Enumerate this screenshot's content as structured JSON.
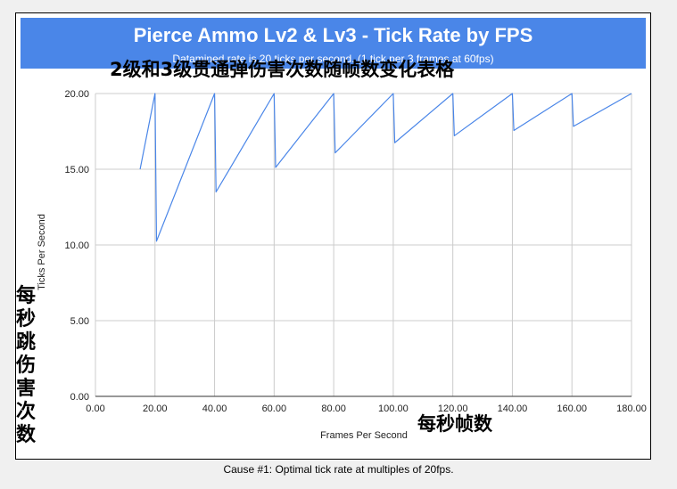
{
  "chart_data": {
    "type": "line",
    "title": "Pierce Ammo Lv2 & Lv3 - Tick Rate by FPS",
    "subtitle": "Datamined rate is 20 ticks per second. (1 tick per 3 frames at 60fps)",
    "annotation_title_cn": "2级和3级贯通弹伤害次数随帧数变化表格",
    "annotation_ylabel_cn": "每秒跳伤害次数",
    "annotation_xlabel_cn": "每秒帧数",
    "xlabel": "Frames Per Second",
    "ylabel": "Ticks Per Second",
    "xlim": [
      0,
      180
    ],
    "ylim": [
      0,
      20
    ],
    "x_ticks": [
      "0.00",
      "20.00",
      "40.00",
      "60.00",
      "80.00",
      "100.00",
      "120.00",
      "140.00",
      "160.00",
      "180.00"
    ],
    "y_ticks": [
      "0.00",
      "5.00",
      "10.00",
      "15.00",
      "20.00"
    ],
    "grid": true,
    "series": [
      {
        "color": "#4a86e8",
        "x": [
          15,
          20,
          20.5,
          40,
          40.5,
          60,
          60.5,
          80,
          80.5,
          100,
          100.5,
          120,
          120.5,
          140,
          140.5,
          160,
          160.5,
          180
        ],
        "y": [
          15,
          20,
          10.25,
          20,
          13.5,
          20,
          15.12,
          20,
          16.08,
          20,
          16.75,
          20,
          17.21,
          20,
          17.56,
          20,
          17.83,
          20
        ]
      }
    ]
  },
  "caption": "Cause #1: Optimal tick rate at multiples of 20fps."
}
